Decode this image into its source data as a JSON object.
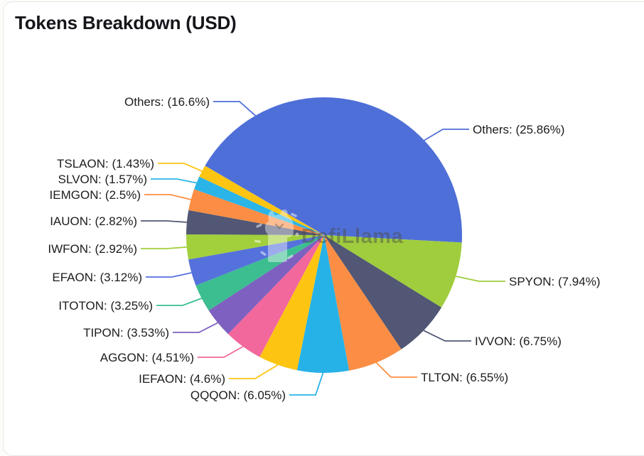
{
  "page": {
    "title": "Tokens Breakdown (USD)"
  },
  "watermark": {
    "text": "DefiLlama",
    "icon": "llama-icon"
  },
  "chart_data": {
    "type": "pie",
    "title": "Tokens Breakdown (USD)",
    "value_unit": "%",
    "legend_position": "none",
    "labels": "outside-with-leader-lines",
    "start_angle_deg_from_top": 0,
    "direction": "clockwise",
    "slices": [
      {
        "name": "Others",
        "value": 25.86,
        "label": "Others: (25.86%)",
        "color": "#4f6fd8"
      },
      {
        "name": "SPYON",
        "value": 7.94,
        "label": "SPYON: (7.94%)",
        "color": "#9fcd3d"
      },
      {
        "name": "IVVON",
        "value": 6.75,
        "label": "IVVON: (6.75%)",
        "color": "#515774"
      },
      {
        "name": "TLTON",
        "value": 6.55,
        "label": "TLTON: (6.55%)",
        "color": "#fb8e44"
      },
      {
        "name": "QQQON",
        "value": 6.05,
        "label": "QQQON: (6.05%)",
        "color": "#27b2e7"
      },
      {
        "name": "IEFAON",
        "value": 4.6,
        "label": "IEFAON: (4.6%)",
        "color": "#fdc512"
      },
      {
        "name": "AGGON",
        "value": 4.51,
        "label": "AGGON: (4.51%)",
        "color": "#f2679c"
      },
      {
        "name": "TIPON",
        "value": 3.53,
        "label": "TIPON: (3.53%)",
        "color": "#7d60c0"
      },
      {
        "name": "ITOTON",
        "value": 3.25,
        "label": "ITOTON: (3.25%)",
        "color": "#3cbe90"
      },
      {
        "name": "EFAON",
        "value": 3.12,
        "label": "EFAON: (3.12%)",
        "color": "#5571db"
      },
      {
        "name": "IWFON",
        "value": 2.92,
        "label": "IWFON: (2.92%)",
        "color": "#a2cf3c"
      },
      {
        "name": "IAUON",
        "value": 2.82,
        "label": "IAUON: (2.82%)",
        "color": "#515774"
      },
      {
        "name": "IEMGON",
        "value": 2.5,
        "label": "IEMGON: (2.5%)",
        "color": "#fb8e44"
      },
      {
        "name": "SLVON",
        "value": 1.57,
        "label": "SLVON: (1.57%)",
        "color": "#2ab4e8"
      },
      {
        "name": "TSLAON",
        "value": 1.43,
        "label": "TSLAON: (1.43%)",
        "color": "#fdc512"
      },
      {
        "name": "Others",
        "value": 16.6,
        "label": "Others: (16.6%)",
        "color": "#4f6fd8"
      }
    ]
  }
}
